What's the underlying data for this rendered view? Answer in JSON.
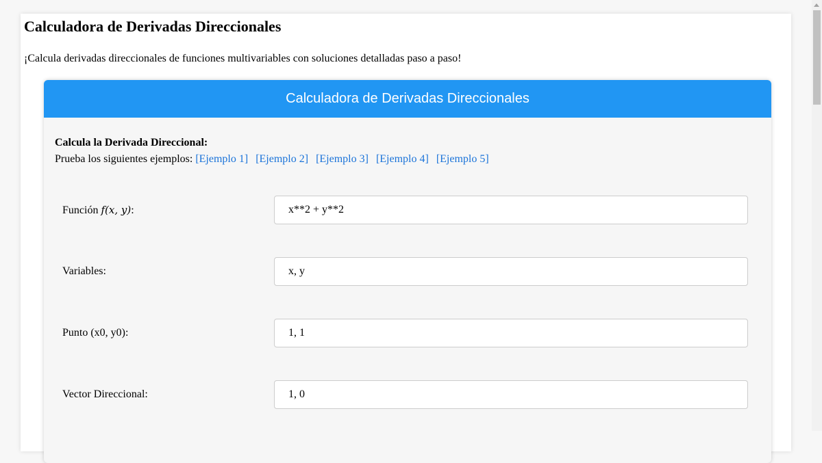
{
  "page": {
    "title": "Calculadora de Derivadas Direccionales",
    "intro": "¡Calcula derivadas direccionales de funciones multivariables con soluciones detalladas paso a paso!"
  },
  "card": {
    "header": "Calculadora de Derivadas Direccionales",
    "subtitle": "Calcula la Derivada Direccional:",
    "examples_label": "Prueba los siguientes ejemplos:",
    "examples": [
      "[Ejemplo 1]",
      "[Ejemplo 2]",
      "[Ejemplo 3]",
      "[Ejemplo 4]",
      "[Ejemplo 5]"
    ],
    "fields": [
      {
        "label": "Función",
        "math": "f(x, y)",
        "suffix": ":",
        "value": "x**2 + y**2"
      },
      {
        "label": "Variables:",
        "value": "x, y"
      },
      {
        "label": "Punto (x0, y0):",
        "value": "1, 1"
      },
      {
        "label": "Vector Direccional:",
        "value": "1, 0"
      }
    ]
  },
  "colors": {
    "header": "#2196f3",
    "link": "#1a73d9"
  }
}
